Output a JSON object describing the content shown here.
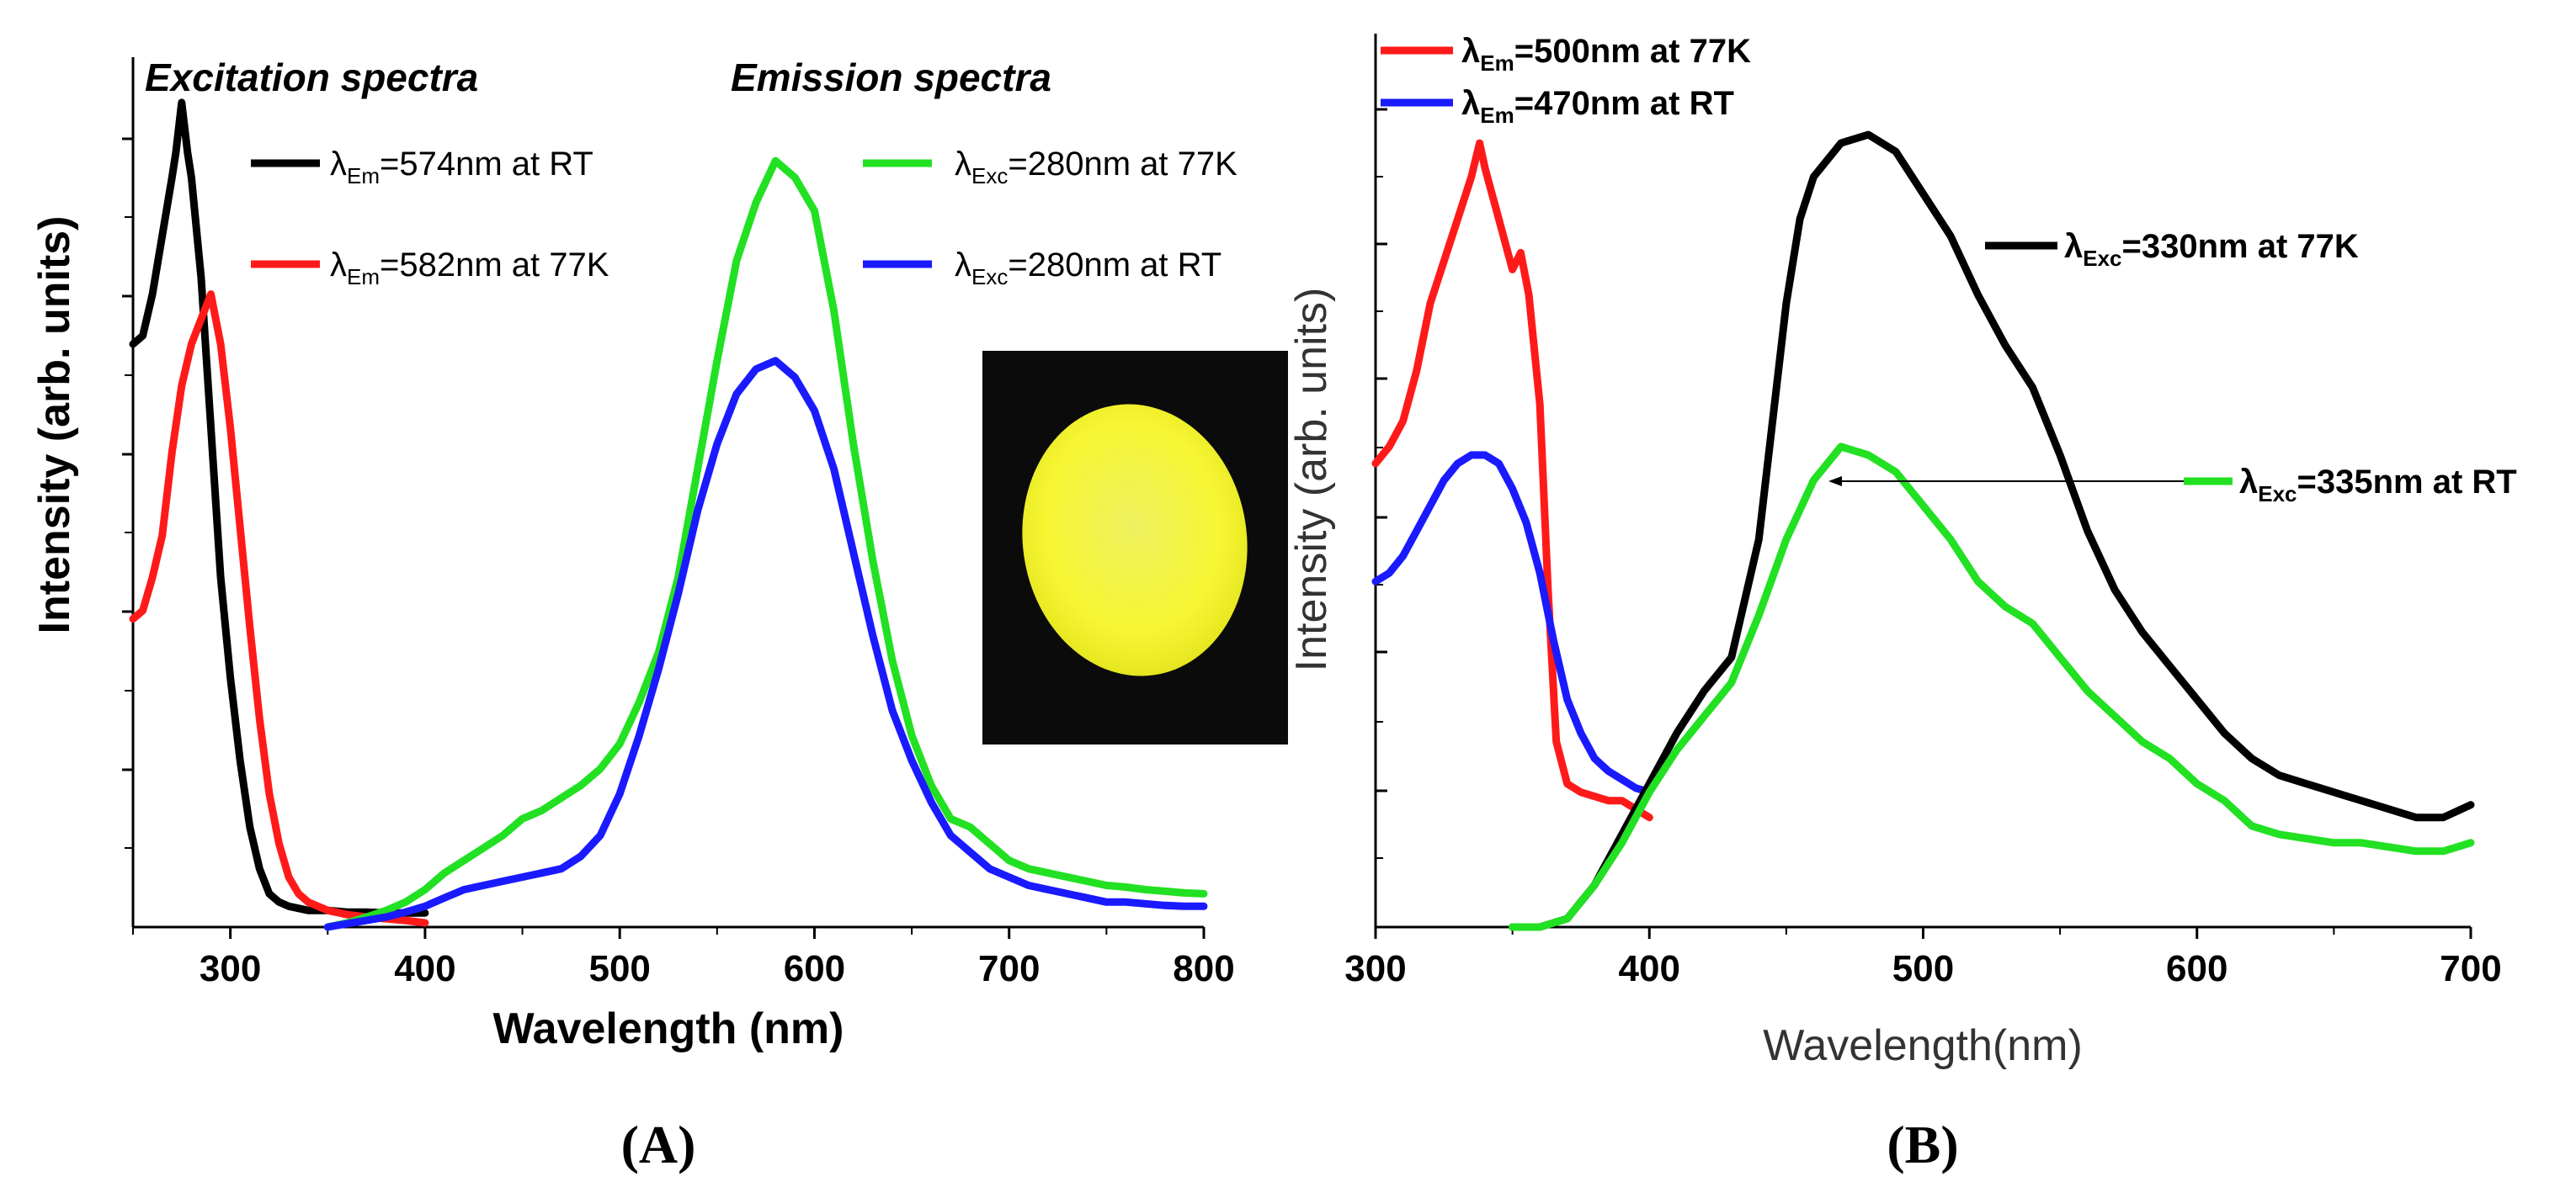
{
  "chart_data": [
    {
      "id": "A",
      "type": "line",
      "panel_label": "(A)",
      "section_titles": {
        "excitation": "Excitation spectra",
        "emission": "Emission spectra"
      },
      "xlabel": "Wavelength (nm)",
      "ylabel": "Intensity (arb. units)",
      "xlim": [
        250,
        800
      ],
      "ylim": [
        0,
        1.0
      ],
      "xticks": [
        "300",
        "400",
        "500",
        "600",
        "700",
        "800"
      ],
      "inset": "yellow-luminescent-sample-photo",
      "colors": {
        "black": "#000000",
        "red": "#ff1a1a",
        "green": "#22e022",
        "blue": "#1a1aff"
      },
      "series": [
        {
          "name": "574nm at RT",
          "prefix": "λ",
          "sub": "Em",
          "suffix": "=574nm at RT",
          "color": "black",
          "x": [
            250,
            255,
            260,
            265,
            270,
            272,
            275,
            278,
            280,
            285,
            290,
            295,
            300,
            305,
            310,
            315,
            320,
            325,
            330,
            340,
            350,
            360,
            370,
            380,
            390,
            400
          ],
          "y": [
            0.7,
            0.71,
            0.76,
            0.83,
            0.9,
            0.93,
            0.99,
            0.93,
            0.9,
            0.78,
            0.6,
            0.42,
            0.3,
            0.2,
            0.12,
            0.07,
            0.04,
            0.03,
            0.025,
            0.02,
            0.02,
            0.018,
            0.018,
            0.017,
            0.017,
            0.017
          ]
        },
        {
          "name": "582nm at 77K",
          "prefix": "λ",
          "sub": "Em",
          "suffix": "=582nm at 77K",
          "color": "red",
          "x": [
            250,
            255,
            260,
            265,
            270,
            275,
            280,
            285,
            290,
            295,
            300,
            305,
            310,
            315,
            320,
            325,
            330,
            335,
            340,
            350,
            360,
            370,
            380,
            390,
            400
          ],
          "y": [
            0.37,
            0.38,
            0.42,
            0.47,
            0.57,
            0.65,
            0.7,
            0.73,
            0.76,
            0.7,
            0.6,
            0.48,
            0.36,
            0.25,
            0.16,
            0.1,
            0.06,
            0.04,
            0.03,
            0.02,
            0.015,
            0.012,
            0.01,
            0.008,
            0.005
          ]
        },
        {
          "name": "280nm at 77K",
          "prefix": "λ",
          "sub": "Exc",
          "suffix": "=280nm at 77K",
          "color": "green",
          "x": [
            350,
            360,
            370,
            380,
            390,
            400,
            410,
            420,
            430,
            440,
            450,
            460,
            470,
            480,
            490,
            500,
            510,
            520,
            530,
            540,
            550,
            560,
            570,
            580,
            590,
            600,
            610,
            620,
            630,
            640,
            650,
            660,
            670,
            680,
            690,
            700,
            710,
            720,
            730,
            740,
            750,
            760,
            770,
            780,
            790,
            800
          ],
          "y": [
            0.0,
            0.005,
            0.012,
            0.02,
            0.03,
            0.045,
            0.065,
            0.08,
            0.095,
            0.11,
            0.13,
            0.14,
            0.155,
            0.17,
            0.19,
            0.22,
            0.27,
            0.33,
            0.42,
            0.55,
            0.68,
            0.8,
            0.87,
            0.92,
            0.9,
            0.86,
            0.74,
            0.58,
            0.44,
            0.32,
            0.23,
            0.17,
            0.13,
            0.12,
            0.1,
            0.08,
            0.07,
            0.065,
            0.06,
            0.055,
            0.05,
            0.048,
            0.045,
            0.043,
            0.041,
            0.04
          ]
        },
        {
          "name": "280nm at RT",
          "prefix": "λ",
          "sub": "Exc",
          "suffix": "=280nm at RT",
          "color": "blue",
          "x": [
            350,
            360,
            370,
            380,
            390,
            400,
            410,
            420,
            430,
            440,
            450,
            460,
            470,
            480,
            490,
            500,
            510,
            520,
            530,
            540,
            550,
            560,
            570,
            580,
            590,
            600,
            610,
            620,
            630,
            640,
            650,
            660,
            670,
            680,
            690,
            700,
            710,
            720,
            730,
            740,
            750,
            760,
            770,
            780,
            790,
            800
          ],
          "y": [
            0.0,
            0.004,
            0.008,
            0.012,
            0.018,
            0.025,
            0.035,
            0.045,
            0.05,
            0.055,
            0.06,
            0.065,
            0.07,
            0.085,
            0.11,
            0.16,
            0.23,
            0.31,
            0.4,
            0.5,
            0.58,
            0.64,
            0.67,
            0.68,
            0.66,
            0.62,
            0.55,
            0.45,
            0.35,
            0.26,
            0.2,
            0.15,
            0.11,
            0.09,
            0.07,
            0.06,
            0.05,
            0.045,
            0.04,
            0.035,
            0.03,
            0.03,
            0.028,
            0.026,
            0.025,
            0.025
          ]
        }
      ]
    },
    {
      "id": "B",
      "type": "line",
      "panel_label": "(B)",
      "xlabel": "Wavelength(nm)",
      "ylabel": "Intensity (arb. units)",
      "xlim": [
        300,
        700
      ],
      "ylim": [
        0,
        1.0
      ],
      "xticks": [
        "300",
        "400",
        "500",
        "600",
        "700"
      ],
      "colors": {
        "black": "#000000",
        "red": "#ff1a1a",
        "green": "#22e022",
        "blue": "#1a1aff"
      },
      "series": [
        {
          "name": "500nm at 77K",
          "prefix": "λ",
          "sub": "Em",
          "suffix": "=500nm at 77K",
          "color": "red",
          "x": [
            300,
            305,
            310,
            315,
            320,
            325,
            330,
            335,
            338,
            340,
            345,
            350,
            353,
            356,
            360,
            363,
            366,
            370,
            375,
            380,
            385,
            390,
            395,
            400
          ],
          "y": [
            0.55,
            0.57,
            0.6,
            0.66,
            0.74,
            0.79,
            0.84,
            0.89,
            0.93,
            0.9,
            0.84,
            0.78,
            0.8,
            0.75,
            0.62,
            0.4,
            0.22,
            0.17,
            0.16,
            0.155,
            0.15,
            0.15,
            0.14,
            0.13
          ]
        },
        {
          "name": "470nm at RT",
          "prefix": "λ",
          "sub": "Em",
          "suffix": "=470nm at RT",
          "color": "blue",
          "x": [
            300,
            305,
            310,
            315,
            320,
            325,
            330,
            335,
            340,
            345,
            350,
            355,
            360,
            365,
            370,
            375,
            380,
            385,
            390,
            395,
            400
          ],
          "y": [
            0.41,
            0.42,
            0.44,
            0.47,
            0.5,
            0.53,
            0.55,
            0.56,
            0.56,
            0.55,
            0.52,
            0.48,
            0.42,
            0.34,
            0.27,
            0.23,
            0.2,
            0.185,
            0.175,
            0.165,
            0.16
          ]
        },
        {
          "name": "330nm at 77K",
          "prefix": "λ",
          "sub": "Exc",
          "suffix": "=330nm at 77K",
          "color": "black",
          "x": [
            350,
            360,
            370,
            380,
            390,
            400,
            410,
            420,
            430,
            440,
            445,
            450,
            455,
            460,
            470,
            480,
            490,
            500,
            510,
            520,
            530,
            540,
            550,
            560,
            570,
            580,
            590,
            600,
            610,
            620,
            630,
            640,
            650,
            660,
            670,
            680,
            690,
            700
          ],
          "y": [
            0.0,
            0.0,
            0.01,
            0.05,
            0.11,
            0.17,
            0.23,
            0.28,
            0.32,
            0.46,
            0.6,
            0.74,
            0.84,
            0.89,
            0.93,
            0.94,
            0.92,
            0.87,
            0.82,
            0.75,
            0.69,
            0.64,
            0.56,
            0.47,
            0.4,
            0.35,
            0.31,
            0.27,
            0.23,
            0.2,
            0.18,
            0.17,
            0.16,
            0.15,
            0.14,
            0.13,
            0.13,
            0.145
          ]
        },
        {
          "name": "335nm at RT",
          "prefix": "λ",
          "sub": "Exc",
          "suffix": "=335nm at RT",
          "color": "green",
          "x": [
            350,
            360,
            370,
            380,
            390,
            400,
            410,
            420,
            430,
            440,
            450,
            460,
            470,
            480,
            490,
            500,
            510,
            520,
            530,
            540,
            550,
            560,
            570,
            580,
            590,
            600,
            610,
            620,
            630,
            640,
            650,
            660,
            670,
            680,
            690,
            700
          ],
          "y": [
            0.0,
            0.0,
            0.01,
            0.05,
            0.1,
            0.16,
            0.21,
            0.25,
            0.29,
            0.37,
            0.46,
            0.53,
            0.57,
            0.56,
            0.54,
            0.5,
            0.46,
            0.41,
            0.38,
            0.36,
            0.32,
            0.28,
            0.25,
            0.22,
            0.2,
            0.17,
            0.15,
            0.12,
            0.11,
            0.105,
            0.1,
            0.1,
            0.095,
            0.09,
            0.09,
            0.1
          ]
        }
      ]
    }
  ]
}
